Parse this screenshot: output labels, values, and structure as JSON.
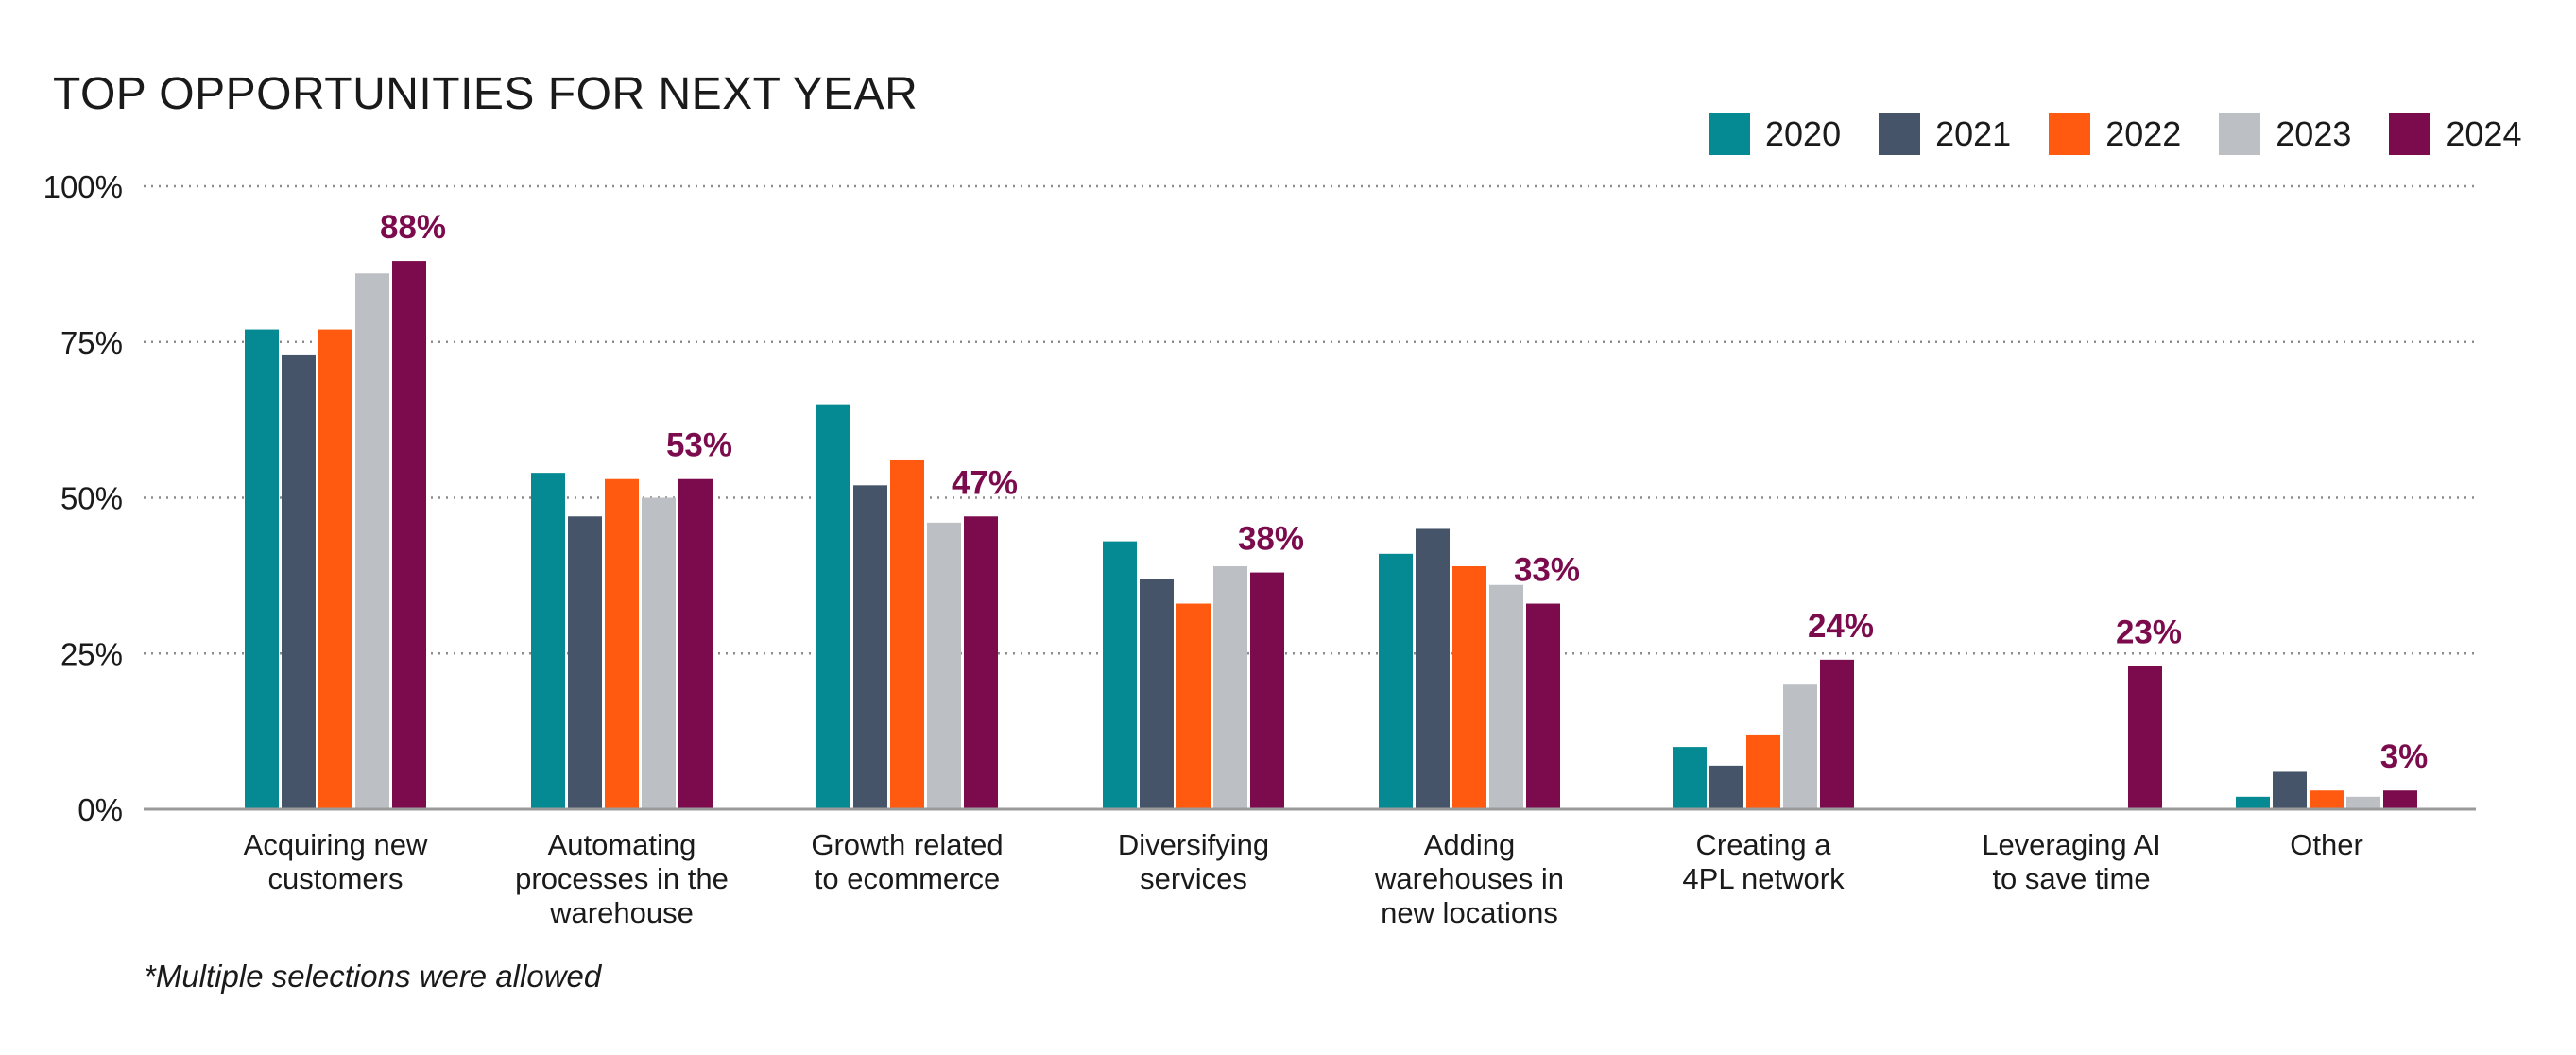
{
  "chart_data": {
    "type": "bar",
    "title": "TOP OPPORTUNITIES FOR NEXT YEAR",
    "footnote": "*Multiple selections were allowed",
    "ylim": [
      0,
      100
    ],
    "yticks": [
      "0%",
      "25%",
      "50%",
      "75%",
      "100%"
    ],
    "ytick_values": [
      0,
      25,
      50,
      75,
      100
    ],
    "grid": "horizontal dotted",
    "legend_position": "top-right",
    "categories": [
      [
        "Acquiring new",
        "customers"
      ],
      [
        "Automating",
        "processes in the",
        "warehouse"
      ],
      [
        "Growth related",
        "to ecommerce"
      ],
      [
        "Diversifying",
        "services"
      ],
      [
        "Adding",
        "warehouses in",
        "new locations"
      ],
      [
        "Creating a",
        "4PL network"
      ],
      [
        "Leveraging AI",
        "to save time"
      ],
      [
        "Other"
      ]
    ],
    "series": [
      {
        "name": "2020",
        "color": "#058A93",
        "values": [
          77,
          54,
          65,
          43,
          41,
          10,
          null,
          2
        ]
      },
      {
        "name": "2021",
        "color": "#455468",
        "values": [
          73,
          47,
          52,
          37,
          45,
          7,
          null,
          6
        ]
      },
      {
        "name": "2022",
        "color": "#FF5A0F",
        "values": [
          77,
          53,
          56,
          33,
          39,
          12,
          null,
          3
        ]
      },
      {
        "name": "2023",
        "color": "#BCC0C5",
        "values": [
          86,
          50,
          46,
          39,
          36,
          20,
          null,
          2
        ]
      },
      {
        "name": "2024",
        "color": "#7B0B4D",
        "values": [
          88,
          53,
          47,
          38,
          33,
          24,
          23,
          3
        ]
      }
    ],
    "data_labels": [
      "88%",
      "53%",
      "47%",
      "38%",
      "33%",
      "24%",
      "23%",
      "3%"
    ],
    "label_color": "#7B0B4D"
  }
}
